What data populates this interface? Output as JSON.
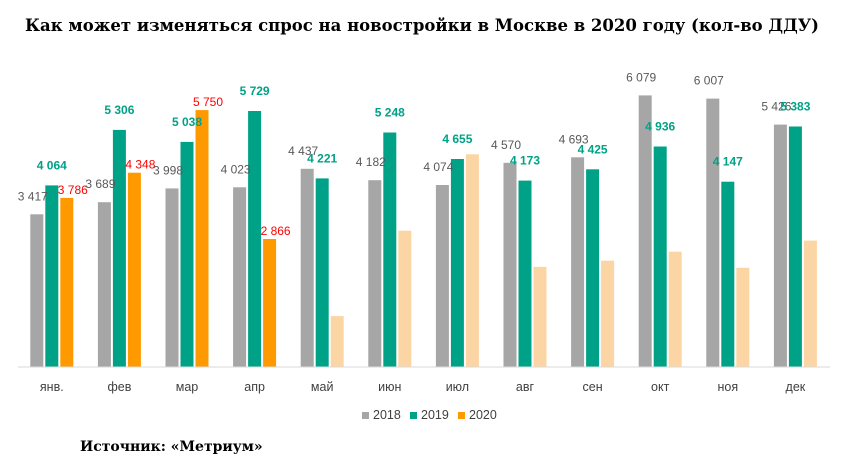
{
  "chart_data": {
    "type": "bar",
    "title": "Как может изменяться спрос на новостройки в Москве в 2020 году (кол-во ДДУ)",
    "categories": [
      "янв.",
      "фев",
      "мар",
      "апр",
      "май",
      "июн",
      "июл",
      "авг",
      "сен",
      "окт",
      "ноя",
      "дек"
    ],
    "ylim": [
      0,
      6200
    ],
    "series": [
      {
        "name": "2018",
        "color": "#a6a6a6",
        "label_color": "#595959",
        "values": [
          3417,
          3689,
          3998,
          4023,
          4437,
          4182,
          4074,
          4570,
          4693,
          6079,
          6007,
          5426
        ],
        "labels": [
          "3 417",
          "3 689",
          "3 998",
          "4 023",
          "4 437",
          "4 182",
          "4 074",
          "4 570",
          "4 693",
          "6 079",
          "6 007",
          "5 426"
        ]
      },
      {
        "name": "2019",
        "color": "#00a287",
        "label_color": "#00a287",
        "values": [
          4064,
          5306,
          5038,
          5729,
          4221,
          5248,
          4655,
          4173,
          4425,
          4936,
          4147,
          5383
        ],
        "labels": [
          "4 064",
          "5 306",
          "5 038",
          "5 729",
          "4 221",
          "5 248",
          "4 655",
          "4 173",
          "4 425",
          "4 936",
          "4 147",
          "5 383"
        ]
      },
      {
        "name": "2020",
        "color": "#ff9900",
        "forecast_color": "#fbd5a3",
        "label_color": "#ff0000",
        "values": [
          3786,
          4348,
          5750,
          2866,
          1140,
          3050,
          4760,
          2240,
          2380,
          2580,
          2220,
          2830
        ],
        "labels": [
          "3 786",
          "4 348",
          "5 750",
          "2 866",
          null,
          null,
          null,
          null,
          null,
          null,
          null,
          null
        ],
        "forecast_from_index": 4
      }
    ],
    "legend": {
      "position": "bottom",
      "items": [
        "2018",
        "2019",
        "2020"
      ]
    },
    "grid": false
  },
  "source": "Источник: «Метриум»"
}
